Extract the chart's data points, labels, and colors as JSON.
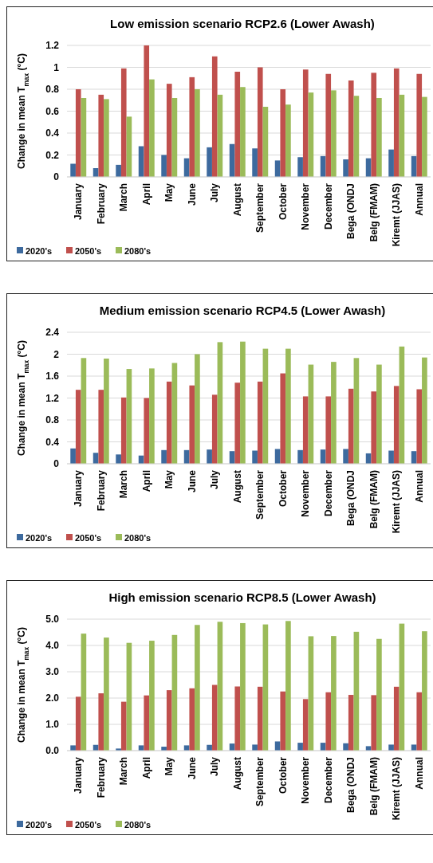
{
  "chart_data": [
    {
      "type": "bar",
      "title": "Low emission scenario RCP2.6 (Lower Awash)",
      "ylabel": "Change in mean T$_{max}$ (°C)",
      "categories": [
        "January",
        "February",
        "March",
        "April",
        "May",
        "June",
        "July",
        "August",
        "September",
        "October",
        "November",
        "December",
        "Bega (ONDJ",
        "Belg (FMAM)",
        "Kiremt (JJAS)",
        "Annual"
      ],
      "series": [
        {
          "name": "2020's",
          "color": "#3d6a9e",
          "values": [
            0.12,
            0.08,
            0.11,
            0.28,
            0.2,
            0.17,
            0.27,
            0.3,
            0.26,
            0.15,
            0.18,
            0.19,
            0.16,
            0.17,
            0.25,
            0.19
          ]
        },
        {
          "name": "2050's",
          "color": "#c0504d",
          "values": [
            0.8,
            0.75,
            0.99,
            1.2,
            0.85,
            0.91,
            1.1,
            0.96,
            1.0,
            0.8,
            0.98,
            0.94,
            0.88,
            0.95,
            0.99,
            0.94
          ]
        },
        {
          "name": "2080's",
          "color": "#9bbb59",
          "values": [
            0.72,
            0.71,
            0.55,
            0.89,
            0.72,
            0.8,
            0.75,
            0.82,
            0.64,
            0.66,
            0.77,
            0.79,
            0.74,
            0.72,
            0.75,
            0.73
          ]
        }
      ],
      "ylim": [
        0,
        1.2
      ],
      "yticks": [
        0,
        0.2,
        0.4,
        0.6,
        0.8,
        1,
        1.2
      ],
      "grid": "y",
      "legend": "bottom"
    },
    {
      "type": "bar",
      "title": "Medium emission scenario RCP4.5 (Lower Awash)",
      "ylabel": "Change in mean T$_{max}$ (°C)",
      "categories": [
        "January",
        "February",
        "March",
        "April",
        "May",
        "June",
        "July",
        "August",
        "September",
        "October",
        "November",
        "December",
        "Bega (ONDJ",
        "Belg (FMAM)",
        "Kiremt (JJAS)",
        "Annual"
      ],
      "series": [
        {
          "name": "2020's",
          "color": "#3d6a9e",
          "values": [
            0.28,
            0.2,
            0.17,
            0.15,
            0.25,
            0.25,
            0.26,
            0.23,
            0.24,
            0.27,
            0.25,
            0.26,
            0.27,
            0.19,
            0.24,
            0.23
          ]
        },
        {
          "name": "2050's",
          "color": "#c0504d",
          "values": [
            1.35,
            1.35,
            1.21,
            1.2,
            1.5,
            1.43,
            1.26,
            1.48,
            1.5,
            1.65,
            1.23,
            1.23,
            1.37,
            1.32,
            1.42,
            1.36
          ]
        },
        {
          "name": "2080's",
          "color": "#9bbb59",
          "values": [
            1.93,
            1.92,
            1.73,
            1.74,
            1.84,
            2.0,
            2.22,
            2.23,
            2.1,
            2.1,
            1.81,
            1.86,
            1.93,
            1.81,
            2.14,
            1.94
          ]
        }
      ],
      "ylim": [
        0,
        2.4
      ],
      "yticks": [
        0,
        0.4,
        0.8,
        1.2,
        1.6,
        2,
        2.4
      ],
      "grid": "y",
      "legend": "bottom"
    },
    {
      "type": "bar",
      "title": "High emission scenario RCP8.5 (Lower Awash)",
      "ylabel": "Change in mean T$_{max}$ (°C)",
      "categories": [
        "January",
        "February",
        "March",
        "April",
        "May",
        "June",
        "July",
        "August",
        "September",
        "October",
        "November",
        "December",
        "Bega (ONDJ",
        "Belg (FMAM)",
        "Kiremt (JJAS)",
        "Annual"
      ],
      "series": [
        {
          "name": "2020's",
          "color": "#3d6a9e",
          "values": [
            0.2,
            0.22,
            0.08,
            0.2,
            0.15,
            0.2,
            0.22,
            0.27,
            0.23,
            0.35,
            0.3,
            0.3,
            0.28,
            0.17,
            0.23,
            0.23
          ]
        },
        {
          "name": "2050's",
          "color": "#c0504d",
          "values": [
            2.05,
            2.18,
            1.86,
            2.1,
            2.3,
            2.37,
            2.5,
            2.44,
            2.43,
            2.25,
            1.96,
            2.22,
            2.12,
            2.11,
            2.43,
            2.22
          ]
        },
        {
          "name": "2080's",
          "color": "#9bbb59",
          "values": [
            4.45,
            4.3,
            4.1,
            4.18,
            4.4,
            4.78,
            4.9,
            4.85,
            4.8,
            4.93,
            4.35,
            4.36,
            4.52,
            4.25,
            4.83,
            4.54
          ]
        }
      ],
      "ylim": [
        0,
        5
      ],
      "yticks": [
        {
          "value": 0,
          "label": "0.0"
        },
        {
          "value": 1,
          "label": "1.0"
        },
        {
          "value": 2,
          "label": "2.0"
        },
        {
          "value": 3,
          "label": "3.0"
        },
        {
          "value": 4,
          "label": "4.0"
        },
        {
          "value": 5,
          "label": "5.0"
        }
      ],
      "grid": "y",
      "legend": "bottom"
    }
  ]
}
